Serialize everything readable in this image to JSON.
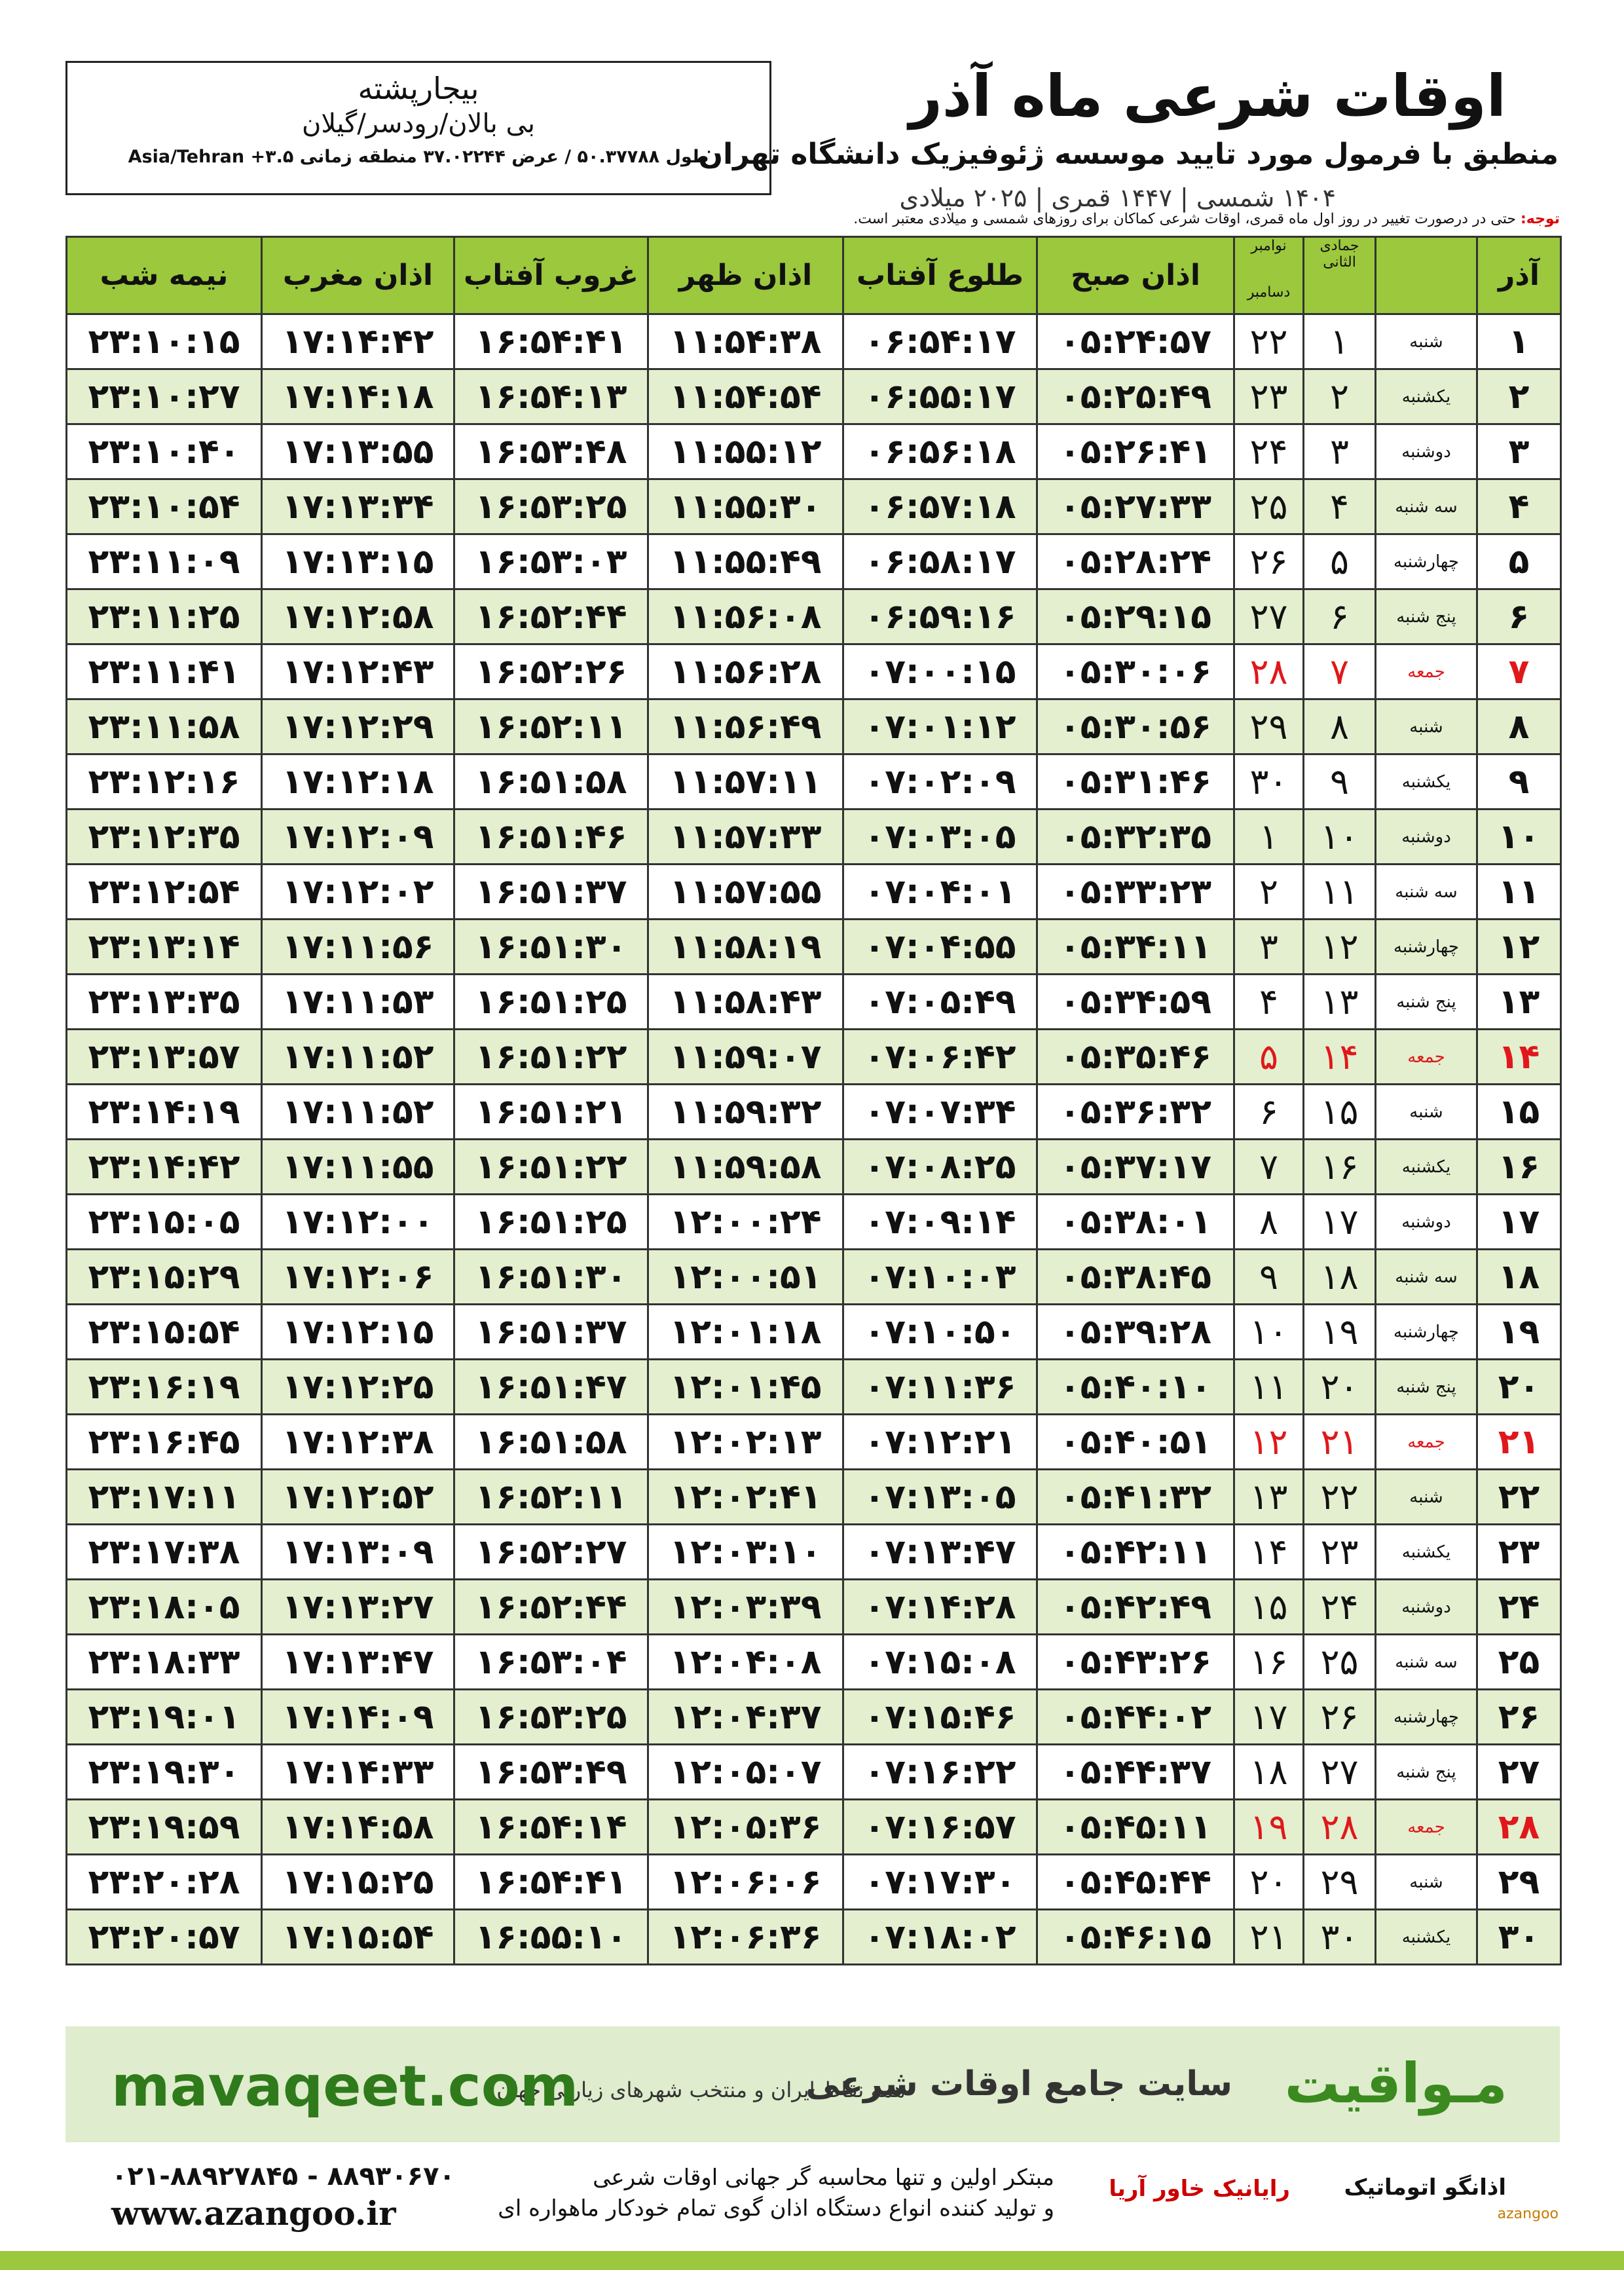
{
  "header": {
    "title": "اوقات شرعی ماه آذر",
    "subtitle": "منطبق با فرمول مورد تایید موسسه ژئوفیزیک دانشگاه تهران",
    "dates": "۱۴۰۴ شمسی | ۱۴۴۷ قمری | ۲۰۲۵ میلادی"
  },
  "location": {
    "name": "بیجارپشته",
    "region": "بی بالان/رودسر/گیلان",
    "coords": "طول ۵۰.۳۷۷۸۸ / عرض ۳۷.۰۲۲۴۴ منطقه زمانی ۳.۵+ Asia/Tehran"
  },
  "note": {
    "label": "توجه:",
    "text": "حتی در درصورت تغییر در روز اول ماه قمری، اوقات شرعی کماکان برای روزهای شمسی و میلادی معتبر است."
  },
  "table": {
    "header": [
      "آذر",
      "",
      "جمادی الثانی",
      "نوامبر",
      "اذان صبح",
      "طلوع آفتاب",
      "اذان ظهر",
      "غروب آفتاب",
      "اذان مغرب",
      "نیمه شب"
    ],
    "gregorian_second_month": "دسامبر",
    "rows": [
      [
        "۱",
        "شنبه",
        "۱",
        "۲۲",
        "۰۵:۲۴:۵۷",
        "۰۶:۵۴:۱۷",
        "۱۱:۵۴:۳۸",
        "۱۶:۵۴:۴۱",
        "۱۷:۱۴:۴۲",
        "۲۳:۱۰:۱۵"
      ],
      [
        "۲",
        "یکشنبه",
        "۲",
        "۲۳",
        "۰۵:۲۵:۴۹",
        "۰۶:۵۵:۱۷",
        "۱۱:۵۴:۵۴",
        "۱۶:۵۴:۱۳",
        "۱۷:۱۴:۱۸",
        "۲۳:۱۰:۲۷"
      ],
      [
        "۳",
        "دوشنبه",
        "۳",
        "۲۴",
        "۰۵:۲۶:۴۱",
        "۰۶:۵۶:۱۸",
        "۱۱:۵۵:۱۲",
        "۱۶:۵۳:۴۸",
        "۱۷:۱۳:۵۵",
        "۲۳:۱۰:۴۰"
      ],
      [
        "۴",
        "سه شنبه",
        "۴",
        "۲۵",
        "۰۵:۲۷:۳۳",
        "۰۶:۵۷:۱۸",
        "۱۱:۵۵:۳۰",
        "۱۶:۵۳:۲۵",
        "۱۷:۱۳:۳۴",
        "۲۳:۱۰:۵۴"
      ],
      [
        "۵",
        "چهارشنبه",
        "۵",
        "۲۶",
        "۰۵:۲۸:۲۴",
        "۰۶:۵۸:۱۷",
        "۱۱:۵۵:۴۹",
        "۱۶:۵۳:۰۳",
        "۱۷:۱۳:۱۵",
        "۲۳:۱۱:۰۹"
      ],
      [
        "۶",
        "پنج شنبه",
        "۶",
        "۲۷",
        "۰۵:۲۹:۱۵",
        "۰۶:۵۹:۱۶",
        "۱۱:۵۶:۰۸",
        "۱۶:۵۲:۴۴",
        "۱۷:۱۲:۵۸",
        "۲۳:۱۱:۲۵"
      ],
      [
        "۷",
        "جمعه",
        "۷",
        "۲۸",
        "۰۵:۳۰:۰۶",
        "۰۷:۰۰:۱۵",
        "۱۱:۵۶:۲۸",
        "۱۶:۵۲:۲۶",
        "۱۷:۱۲:۴۳",
        "۲۳:۱۱:۴۱"
      ],
      [
        "۸",
        "شنبه",
        "۸",
        "۲۹",
        "۰۵:۳۰:۵۶",
        "۰۷:۰۱:۱۲",
        "۱۱:۵۶:۴۹",
        "۱۶:۵۲:۱۱",
        "۱۷:۱۲:۲۹",
        "۲۳:۱۱:۵۸"
      ],
      [
        "۹",
        "یکشنبه",
        "۹",
        "۳۰",
        "۰۵:۳۱:۴۶",
        "۰۷:۰۲:۰۹",
        "۱۱:۵۷:۱۱",
        "۱۶:۵۱:۵۸",
        "۱۷:۱۲:۱۸",
        "۲۳:۱۲:۱۶"
      ],
      [
        "۱۰",
        "دوشنبه",
        "۱۰",
        "۱",
        "۰۵:۳۲:۳۵",
        "۰۷:۰۳:۰۵",
        "۱۱:۵۷:۳۳",
        "۱۶:۵۱:۴۶",
        "۱۷:۱۲:۰۹",
        "۲۳:۱۲:۳۵"
      ],
      [
        "۱۱",
        "سه شنبه",
        "۱۱",
        "۲",
        "۰۵:۳۳:۲۳",
        "۰۷:۰۴:۰۱",
        "۱۱:۵۷:۵۵",
        "۱۶:۵۱:۳۷",
        "۱۷:۱۲:۰۲",
        "۲۳:۱۲:۵۴"
      ],
      [
        "۱۲",
        "چهارشنبه",
        "۱۲",
        "۳",
        "۰۵:۳۴:۱۱",
        "۰۷:۰۴:۵۵",
        "۱۱:۵۸:۱۹",
        "۱۶:۵۱:۳۰",
        "۱۷:۱۱:۵۶",
        "۲۳:۱۳:۱۴"
      ],
      [
        "۱۳",
        "پنج شنبه",
        "۱۳",
        "۴",
        "۰۵:۳۴:۵۹",
        "۰۷:۰۵:۴۹",
        "۱۱:۵۸:۴۳",
        "۱۶:۵۱:۲۵",
        "۱۷:۱۱:۵۳",
        "۲۳:۱۳:۳۵"
      ],
      [
        "۱۴",
        "جمعه",
        "۱۴",
        "۵",
        "۰۵:۳۵:۴۶",
        "۰۷:۰۶:۴۲",
        "۱۱:۵۹:۰۷",
        "۱۶:۵۱:۲۲",
        "۱۷:۱۱:۵۲",
        "۲۳:۱۳:۵۷"
      ],
      [
        "۱۵",
        "شنبه",
        "۱۵",
        "۶",
        "۰۵:۳۶:۳۲",
        "۰۷:۰۷:۳۴",
        "۱۱:۵۹:۳۲",
        "۱۶:۵۱:۲۱",
        "۱۷:۱۱:۵۲",
        "۲۳:۱۴:۱۹"
      ],
      [
        "۱۶",
        "یکشنبه",
        "۱۶",
        "۷",
        "۰۵:۳۷:۱۷",
        "۰۷:۰۸:۲۵",
        "۱۱:۵۹:۵۸",
        "۱۶:۵۱:۲۲",
        "۱۷:۱۱:۵۵",
        "۲۳:۱۴:۴۲"
      ],
      [
        "۱۷",
        "دوشنبه",
        "۱۷",
        "۸",
        "۰۵:۳۸:۰۱",
        "۰۷:۰۹:۱۴",
        "۱۲:۰۰:۲۴",
        "۱۶:۵۱:۲۵",
        "۱۷:۱۲:۰۰",
        "۲۳:۱۵:۰۵"
      ],
      [
        "۱۸",
        "سه شنبه",
        "۱۸",
        "۹",
        "۰۵:۳۸:۴۵",
        "۰۷:۱۰:۰۳",
        "۱۲:۰۰:۵۱",
        "۱۶:۵۱:۳۰",
        "۱۷:۱۲:۰۶",
        "۲۳:۱۵:۲۹"
      ],
      [
        "۱۹",
        "چهارشنبه",
        "۱۹",
        "۱۰",
        "۰۵:۳۹:۲۸",
        "۰۷:۱۰:۵۰",
        "۱۲:۰۱:۱۸",
        "۱۶:۵۱:۳۷",
        "۱۷:۱۲:۱۵",
        "۲۳:۱۵:۵۴"
      ],
      [
        "۲۰",
        "پنج شنبه",
        "۲۰",
        "۱۱",
        "۰۵:۴۰:۱۰",
        "۰۷:۱۱:۳۶",
        "۱۲:۰۱:۴۵",
        "۱۶:۵۱:۴۷",
        "۱۷:۱۲:۲۵",
        "۲۳:۱۶:۱۹"
      ],
      [
        "۲۱",
        "جمعه",
        "۲۱",
        "۱۲",
        "۰۵:۴۰:۵۱",
        "۰۷:۱۲:۲۱",
        "۱۲:۰۲:۱۳",
        "۱۶:۵۱:۵۸",
        "۱۷:۱۲:۳۸",
        "۲۳:۱۶:۴۵"
      ],
      [
        "۲۲",
        "شنبه",
        "۲۲",
        "۱۳",
        "۰۵:۴۱:۳۲",
        "۰۷:۱۳:۰۵",
        "۱۲:۰۲:۴۱",
        "۱۶:۵۲:۱۱",
        "۱۷:۱۲:۵۲",
        "۲۳:۱۷:۱۱"
      ],
      [
        "۲۳",
        "یکشنبه",
        "۲۳",
        "۱۴",
        "۰۵:۴۲:۱۱",
        "۰۷:۱۳:۴۷",
        "۱۲:۰۳:۱۰",
        "۱۶:۵۲:۲۷",
        "۱۷:۱۳:۰۹",
        "۲۳:۱۷:۳۸"
      ],
      [
        "۲۴",
        "دوشنبه",
        "۲۴",
        "۱۵",
        "۰۵:۴۲:۴۹",
        "۰۷:۱۴:۲۸",
        "۱۲:۰۳:۳۹",
        "۱۶:۵۲:۴۴",
        "۱۷:۱۳:۲۷",
        "۲۳:۱۸:۰۵"
      ],
      [
        "۲۵",
        "سه شنبه",
        "۲۵",
        "۱۶",
        "۰۵:۴۳:۲۶",
        "۰۷:۱۵:۰۸",
        "۱۲:۰۴:۰۸",
        "۱۶:۵۳:۰۴",
        "۱۷:۱۳:۴۷",
        "۲۳:۱۸:۳۳"
      ],
      [
        "۲۶",
        "چهارشنبه",
        "۲۶",
        "۱۷",
        "۰۵:۴۴:۰۲",
        "۰۷:۱۵:۴۶",
        "۱۲:۰۴:۳۷",
        "۱۶:۵۳:۲۵",
        "۱۷:۱۴:۰۹",
        "۲۳:۱۹:۰۱"
      ],
      [
        "۲۷",
        "پنج شنبه",
        "۲۷",
        "۱۸",
        "۰۵:۴۴:۳۷",
        "۰۷:۱۶:۲۲",
        "۱۲:۰۵:۰۷",
        "۱۶:۵۳:۴۹",
        "۱۷:۱۴:۳۳",
        "۲۳:۱۹:۳۰"
      ],
      [
        "۲۸",
        "جمعه",
        "۲۸",
        "۱۹",
        "۰۵:۴۵:۱۱",
        "۰۷:۱۶:۵۷",
        "۱۲:۰۵:۳۶",
        "۱۶:۵۴:۱۴",
        "۱۷:۱۴:۵۸",
        "۲۳:۱۹:۵۹"
      ],
      [
        "۲۹",
        "شنبه",
        "۲۹",
        "۲۰",
        "۰۵:۴۵:۴۴",
        "۰۷:۱۷:۳۰",
        "۱۲:۰۶:۰۶",
        "۱۶:۵۴:۴۱",
        "۱۷:۱۵:۲۵",
        "۲۳:۲۰:۲۸"
      ],
      [
        "۳۰",
        "یکشنبه",
        "۳۰",
        "۲۱",
        "۰۵:۴۶:۱۵",
        "۰۷:۱۸:۰۲",
        "۱۲:۰۶:۳۶",
        "۱۶:۵۵:۱۰",
        "۱۷:۱۵:۵۴",
        "۲۳:۲۰:۵۷"
      ]
    ]
  },
  "banner": {
    "brand": "مـواقیت",
    "tagline": "سایت جامع اوقات شرعی",
    "scope": "همه نقاط ایران و منتخب شهرهای زیارتی جهان",
    "site": "mavaqeet.com"
  },
  "footer": {
    "phone": "۰۲۱-۸۸۹۲۷۸۴۵ - ۸۸۹۳۰۶۷۰",
    "site": "www.azangoo.ir",
    "line1": "مبتکر اولین و تنها محاسبه گر جهانی اوقات شرعی",
    "line2": "و تولید کننده انواع دستگاه اذان گوی تمام خودکار ماهواره ای",
    "logo1": "رایانیک خاور آریا",
    "logo2": "اذانگو اتوماتیک",
    "logo3": "azangoo"
  }
}
